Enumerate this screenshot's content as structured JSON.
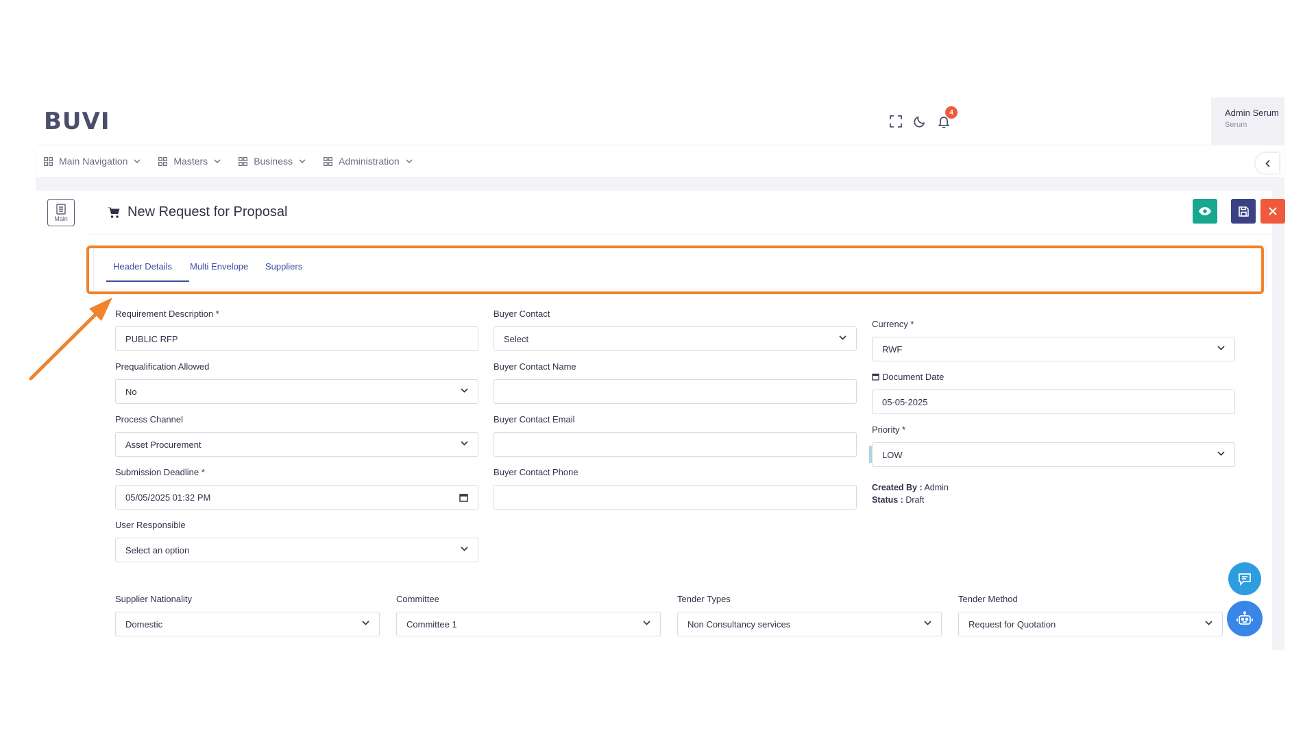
{
  "brand": {
    "logo": "BUVI"
  },
  "header": {
    "notification_count": "4",
    "user_name": "Admin Serum",
    "user_role": "Serum"
  },
  "nav": {
    "items": [
      {
        "label": "Main Navigation"
      },
      {
        "label": "Masters"
      },
      {
        "label": "Business"
      },
      {
        "label": "Administration"
      }
    ]
  },
  "sidebar": {
    "main_label": "Main"
  },
  "page": {
    "title": "New Request for Proposal"
  },
  "tabs": [
    {
      "label": "Header Details",
      "active": true
    },
    {
      "label": "Multi Envelope"
    },
    {
      "label": "Suppliers"
    }
  ],
  "form": {
    "requirement_description": {
      "label": "Requirement Description *",
      "value": "PUBLIC RFP"
    },
    "prequalification": {
      "label": "Prequalification Allowed",
      "value": "No"
    },
    "process_channel": {
      "label": "Process Channel",
      "value": "Asset Procurement"
    },
    "submission_deadline": {
      "label": "Submission Deadline *",
      "value": "05/05/2025 01:32 PM"
    },
    "user_responsible": {
      "label": "User Responsible",
      "value": "Select an option"
    },
    "buyer_contact": {
      "label": "Buyer Contact",
      "value": "Select"
    },
    "buyer_contact_name": {
      "label": "Buyer Contact Name",
      "value": ""
    },
    "buyer_contact_email": {
      "label": "Buyer Contact Email",
      "value": ""
    },
    "buyer_contact_phone": {
      "label": "Buyer Contact Phone",
      "value": ""
    },
    "currency": {
      "label": "Currency *",
      "value": "RWF"
    },
    "document_date": {
      "label": "Document Date",
      "value": "05-05-2025"
    },
    "priority": {
      "label": "Priority *",
      "value": "LOW"
    },
    "created_by": {
      "label": "Created By :",
      "value": "Admin"
    },
    "status": {
      "label": "Status :",
      "value": "Draft"
    },
    "supplier_nationality": {
      "label": "Supplier Nationality",
      "value": "Domestic"
    },
    "committee": {
      "label": "Committee",
      "value": "Committee 1"
    },
    "tender_types": {
      "label": "Tender Types",
      "value": "Non Consultancy services"
    },
    "tender_method": {
      "label": "Tender Method",
      "value": "Request for Quotation"
    }
  },
  "colors": {
    "accent": "#3b4fa0",
    "highlight": "#f0832c",
    "view_button": "#17a78f",
    "save_button": "#3a4285",
    "close_button": "#ef5a3c",
    "chat_fab": "#2d9de0",
    "bot_fab": "#3a86e8",
    "priority_bg": "#acd6e4"
  },
  "icons": [
    "fullscreen-icon",
    "moon-icon",
    "bell-icon",
    "grid-icon",
    "chevron-down-icon",
    "chevron-left-icon",
    "document-icon",
    "cart-icon",
    "eye-icon",
    "save-icon",
    "close-icon",
    "calendar-icon",
    "chat-icon",
    "robot-icon",
    "arrow-annotation"
  ]
}
